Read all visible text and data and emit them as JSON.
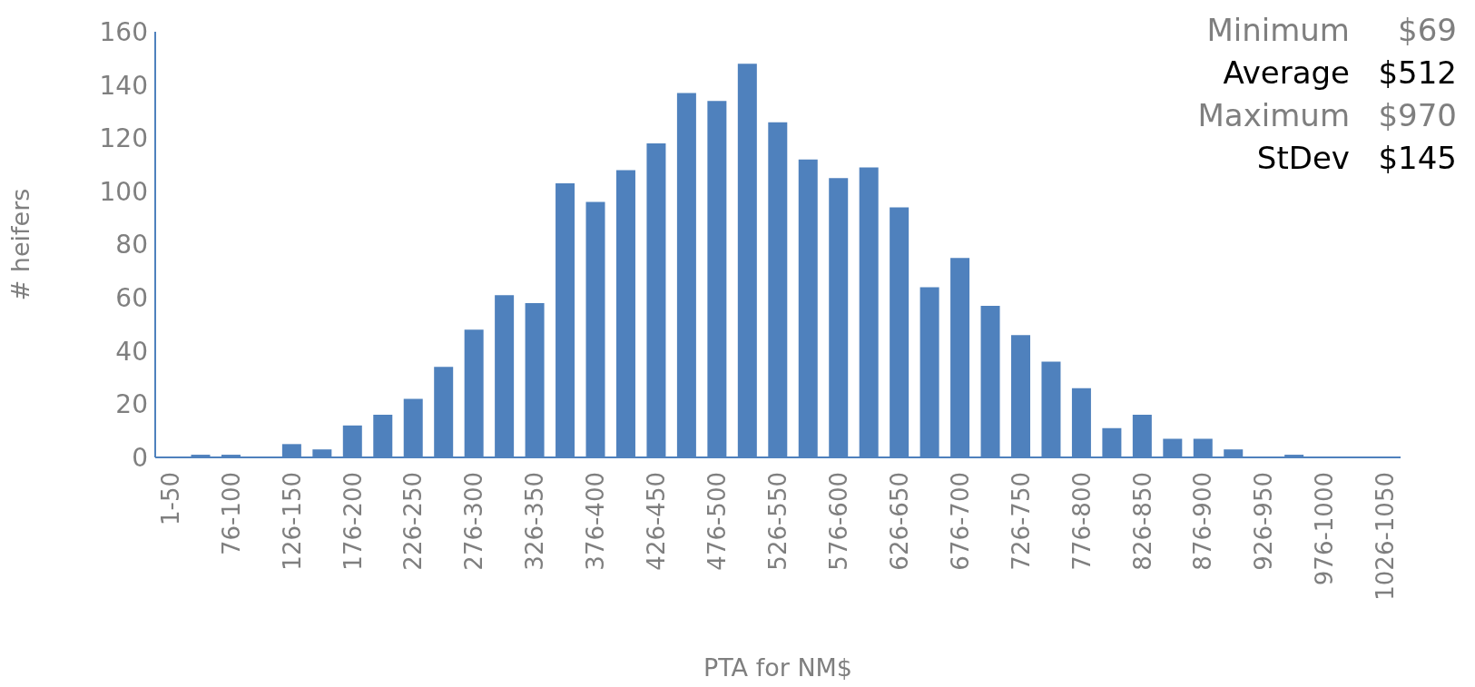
{
  "chart_data": {
    "type": "bar",
    "xlabel": "PTA for NM$",
    "ylabel": "# heifers",
    "categories": [
      "1-50",
      null,
      "76-100",
      null,
      "126-150",
      null,
      "176-200",
      null,
      "226-250",
      null,
      "276-300",
      null,
      "326-350",
      null,
      "376-400",
      null,
      "426-450",
      null,
      "476-500",
      null,
      "526-550",
      null,
      "576-600",
      null,
      "626-650",
      null,
      "676-700",
      null,
      "726-750",
      null,
      "776-800",
      null,
      "826-850",
      null,
      "876-900",
      null,
      "926-950",
      null,
      "976-1000",
      null,
      "1026-1050"
    ],
    "values": [
      0,
      1,
      1,
      0,
      5,
      3,
      12,
      16,
      22,
      34,
      48,
      61,
      58,
      103,
      96,
      108,
      118,
      137,
      134,
      148,
      126,
      112,
      105,
      109,
      94,
      64,
      75,
      57,
      46,
      36,
      26,
      11,
      16,
      7,
      7,
      3,
      0,
      1,
      0,
      0,
      0
    ],
    "color": "#4f81bd",
    "ylim": [
      0,
      160
    ],
    "yticks": [
      0,
      20,
      40,
      60,
      80,
      100,
      120,
      140,
      160
    ],
    "grid": false,
    "legend": false,
    "annotations": [
      "Minimum $69",
      "Average $512",
      "Maximum $970",
      "StDev $145"
    ]
  }
}
